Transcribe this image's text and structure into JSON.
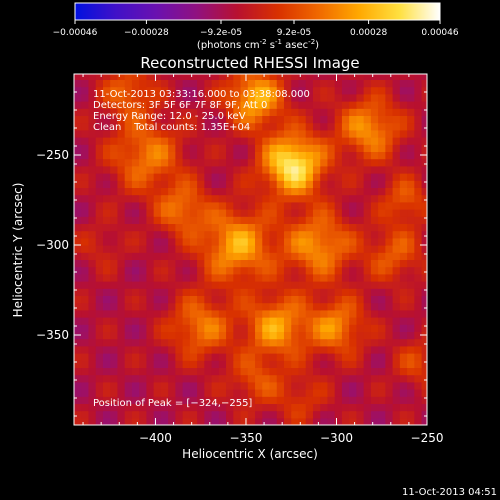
{
  "colorbar": {
    "ticks": [
      "-0.00046",
      "-0.00028",
      "-9.2e-05",
      "9.2e-05",
      "0.00028",
      "0.00046"
    ],
    "unit_main": "(photons cm",
    "unit_exp1": "-2",
    "unit_mid": " s",
    "unit_exp2": "-1",
    "unit_tail": " asec",
    "unit_exp3": "-2",
    "unit_close": ")",
    "range": [
      -0.00046,
      0.00046
    ],
    "colormap": [
      "#0010e0",
      "#4010c8",
      "#6a10b0",
      "#901080",
      "#b81030",
      "#d83000",
      "#f06800",
      "#ffa800",
      "#ffe040",
      "#ffffff"
    ]
  },
  "chart_data": {
    "type": "heatmap",
    "title": "Reconstructed RHESSI Image",
    "xlabel": "Heliocentric X (arcsec)",
    "ylabel": "Heliocentric Y (arcsec)",
    "xlim": [
      -445,
      -250
    ],
    "ylim": [
      -400,
      -205
    ],
    "xticks": [
      -400,
      -350,
      -300,
      -250
    ],
    "xtick_labels": [
      "−400",
      "−350",
      "−300",
      "−250"
    ],
    "yticks": [
      -250,
      -300,
      -350
    ],
    "ytick_labels": [
      "−250",
      "−300",
      "−350"
    ],
    "peak": [
      -324,
      -255
    ],
    "annotations": [
      "11-Oct-2013 03:33:16.000 to 03:38:08.000",
      "Detectors: 3F 5F 6F 7F 8F 9F, Att 0",
      "Energy Range: 12.0 - 25.0 keV",
      "Clean    Total counts: 1.35E+04"
    ],
    "peak_label": "Position of Peak = [−324,−255]",
    "sources": [
      {
        "x": -324,
        "y": -255,
        "value": 0.00046,
        "sigma": 12
      },
      {
        "x": -345,
        "y": -218,
        "value": 0.00034,
        "sigma": 11
      },
      {
        "x": -282,
        "y": -235,
        "value": 0.00028,
        "sigma": 12
      },
      {
        "x": -355,
        "y": -300,
        "value": 0.00032,
        "sigma": 14
      },
      {
        "x": -310,
        "y": -300,
        "value": 0.00028,
        "sigma": 13
      },
      {
        "x": -333,
        "y": -345,
        "value": 0.0003,
        "sigma": 12
      },
      {
        "x": -375,
        "y": -345,
        "value": 0.00024,
        "sigma": 12
      },
      {
        "x": -300,
        "y": -345,
        "value": 0.00026,
        "sigma": 11
      },
      {
        "x": -405,
        "y": -250,
        "value": 0.00024,
        "sigma": 14
      },
      {
        "x": -415,
        "y": -215,
        "value": 0.0002,
        "sigma": 10
      },
      {
        "x": -385,
        "y": -280,
        "value": 0.00022,
        "sigma": 10
      },
      {
        "x": -268,
        "y": -305,
        "value": 0.00018,
        "sigma": 11
      },
      {
        "x": -262,
        "y": -275,
        "value": 0.00018,
        "sigma": 9
      },
      {
        "x": -345,
        "y": -375,
        "value": 0.00016,
        "sigma": 10
      },
      {
        "x": -255,
        "y": -365,
        "value": 0.00014,
        "sigma": 9
      },
      {
        "x": -430,
        "y": -300,
        "value": 8e-05,
        "sigma": 9
      },
      {
        "x": -320,
        "y": -385,
        "value": 0.00012,
        "sigma": 10
      }
    ]
  },
  "timestamp": "11-Oct-2013 04:51"
}
